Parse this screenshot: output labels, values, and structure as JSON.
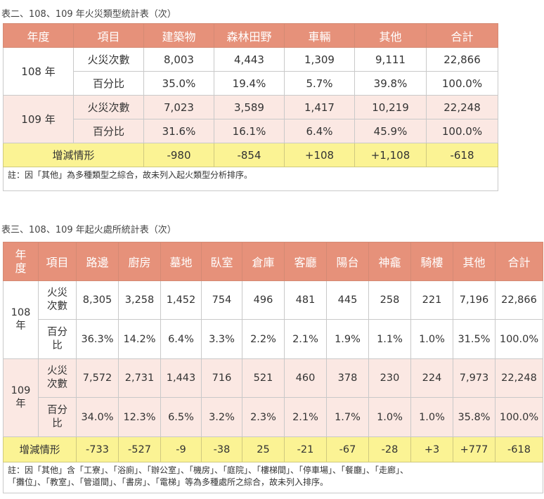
{
  "table2": {
    "caption": "表二、108、109 年火災類型統計表（次）",
    "headers": [
      "年度",
      "項目",
      "建築物",
      "森林田野",
      "車輛",
      "其他",
      "合計"
    ],
    "years": [
      {
        "year": "108 年",
        "rows": [
          {
            "label": "火災次數",
            "values": [
              "8,003",
              "4,443",
              "1,309",
              "9,111",
              "22,866"
            ]
          },
          {
            "label": "百分比",
            "values": [
              "35.0%",
              "19.4%",
              "5.7%",
              "39.8%",
              "100.0%"
            ]
          }
        ]
      },
      {
        "year": "109 年",
        "rows": [
          {
            "label": "火災次數",
            "values": [
              "7,023",
              "3,589",
              "1,417",
              "10,219",
              "22,248"
            ]
          },
          {
            "label": "百分比",
            "values": [
              "31.6%",
              "16.1%",
              "6.4%",
              "45.9%",
              "100.0%"
            ]
          }
        ]
      }
    ],
    "change": {
      "label": "增減情形",
      "values": [
        "-980",
        "-854",
        "+108",
        "+1,108",
        "-618"
      ]
    },
    "note": "註：因「其他」為多種類型之綜合，故未列入起火類型分析排序。"
  },
  "table3": {
    "caption": "表三、108、109 年起火處所統計表（次）",
    "header_year_1": "年",
    "header_year_2": "度",
    "headers": [
      "項目",
      "路邊",
      "廚房",
      "墓地",
      "臥室",
      "倉庫",
      "客廳",
      "陽台",
      "神龕",
      "騎樓",
      "其他",
      "合計"
    ],
    "years": [
      {
        "year_1": "108",
        "year_2": "年",
        "rows": [
          {
            "label_1": "火災",
            "label_2": "次數",
            "values": [
              "8,305",
              "3,258",
              "1,452",
              "754",
              "496",
              "481",
              "445",
              "258",
              "221",
              "7,196",
              "22,866"
            ]
          },
          {
            "label_1": "百分",
            "label_2": "比",
            "values": [
              "36.3%",
              "14.2%",
              "6.4%",
              "3.3%",
              "2.2%",
              "2.1%",
              "1.9%",
              "1.1%",
              "1.0%",
              "31.5%",
              "100.0%"
            ]
          }
        ]
      },
      {
        "year_1": "109",
        "year_2": "年",
        "rows": [
          {
            "label_1": "火災",
            "label_2": "次數",
            "values": [
              "7,572",
              "2,731",
              "1,443",
              "716",
              "521",
              "460",
              "378",
              "230",
              "224",
              "7,973",
              "22,248"
            ]
          },
          {
            "label_1": "百分",
            "label_2": "比",
            "values": [
              "34.0%",
              "12.3%",
              "6.5%",
              "3.2%",
              "2.3%",
              "2.1%",
              "1.7%",
              "1.0%",
              "1.0%",
              "35.8%",
              "100.0%"
            ]
          }
        ]
      }
    ],
    "change": {
      "label": "增減情形",
      "values": [
        "-733",
        "-527",
        "-9",
        "-38",
        "25",
        "-21",
        "-67",
        "-28",
        "+3",
        "+777",
        "-618"
      ]
    },
    "note_1": "註：因「其他」含「工寮」、「浴廁」、「辦公室」、「機房」、「庭院」、「樓梯間」、「停車場」、「餐廳」、「走廊」、",
    "note_2": "「攤位」、「教室」、「管道間」、「書房」、「電梯」等為多種處所之綜合，故未列入排序。"
  },
  "colors": {
    "header_bg": "#e6917a",
    "header_text": "#ffffff",
    "row_pink": "#fbe8e3",
    "change_bg": "#fbf394",
    "border": "#c9c9c9"
  }
}
